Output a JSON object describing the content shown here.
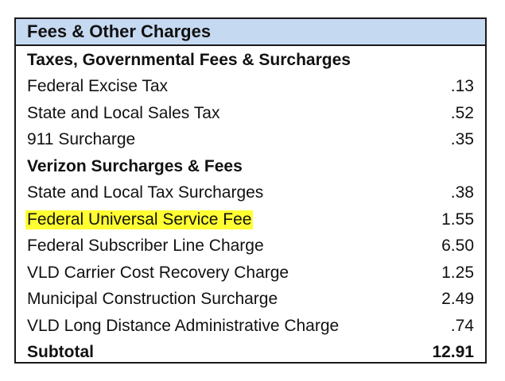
{
  "header": {
    "title": "Fees & Other Charges"
  },
  "rows": [
    {
      "label": "Taxes, Governmental Fees & Surcharges",
      "value": "",
      "type": "section"
    },
    {
      "label": "Federal Excise Tax",
      "value": ".13",
      "type": "item"
    },
    {
      "label": "State and Local Sales Tax",
      "value": ".52",
      "type": "item"
    },
    {
      "label": "911 Surcharge",
      "value": ".35",
      "type": "item"
    },
    {
      "label": "Verizon Surcharges & Fees",
      "value": "",
      "type": "section"
    },
    {
      "label": "State and Local Tax Surcharges",
      "value": ".38",
      "type": "item"
    },
    {
      "label": "Federal Universal Service Fee",
      "value": "1.55",
      "type": "item",
      "highlight_color": "#ffff33"
    },
    {
      "label": "Federal Subscriber Line Charge",
      "value": "6.50",
      "type": "item"
    },
    {
      "label": "VLD Carrier Cost Recovery Charge",
      "value": "1.25",
      "type": "item"
    },
    {
      "label": "Municipal Construction Surcharge",
      "value": "2.49",
      "type": "item"
    },
    {
      "label": "VLD Long Distance Administrative Charge",
      "value": ".74",
      "type": "item"
    },
    {
      "label": "Subtotal",
      "value": "12.91",
      "type": "total"
    }
  ]
}
